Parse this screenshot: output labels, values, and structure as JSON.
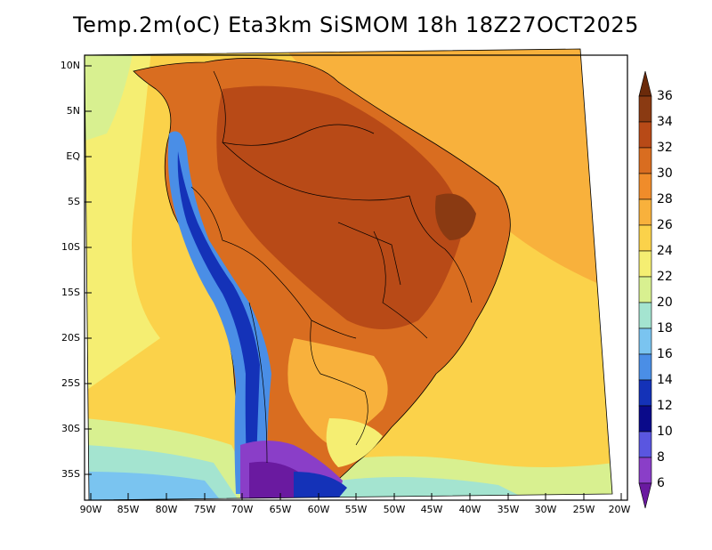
{
  "title": "Temp.2m(oC) Eta3km SiSMOM 18h 18Z27OCT2025",
  "lat_ticks": [
    "10N",
    "5N",
    "EQ",
    "5S",
    "10S",
    "15S",
    "20S",
    "25S",
    "30S",
    "35S"
  ],
  "lon_ticks": [
    "90W",
    "85W",
    "80W",
    "75W",
    "70W",
    "65W",
    "60W",
    "55W",
    "50W",
    "45W",
    "40W",
    "35W",
    "30W",
    "25W",
    "20W"
  ],
  "colorbar": {
    "labels": [
      "36",
      "34",
      "32",
      "30",
      "28",
      "26",
      "24",
      "22",
      "20",
      "18",
      "16",
      "14",
      "12",
      "10",
      "8",
      "6"
    ],
    "colors": [
      "#6b2a0a",
      "#8a3a12",
      "#b84a17",
      "#d96d20",
      "#f08c2a",
      "#f8b13c",
      "#fbd24a",
      "#f5ee72",
      "#d8f090",
      "#a4e4d0",
      "#7ac4f0",
      "#4a8ee6",
      "#1432b8",
      "#0a0a8a",
      "#5a56e0",
      "#8a3ec8",
      "#6a1aa0"
    ]
  },
  "colors": {
    "ocean_warm": "#f8b13c",
    "ocean_mid": "#fbd24a",
    "ocean_cool": "#d8f090",
    "land_hot": "#b84a17",
    "land_very_hot": "#8a3a12",
    "andes_cold": "#4a8ee6",
    "patagonia": "#8a3ec8"
  }
}
